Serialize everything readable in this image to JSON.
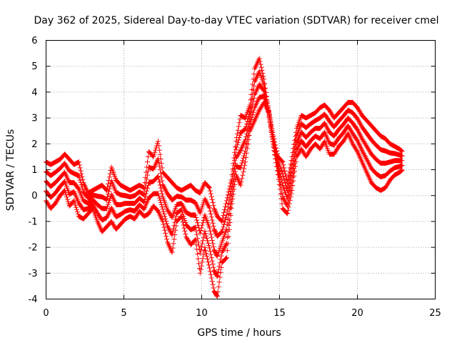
{
  "chart_data": {
    "type": "scatter",
    "title": "Day 362 of 2025, Sidereal Day-to-day VTEC variation (SDTVAR) for receiver cmel",
    "xlabel": "GPS time / hours",
    "ylabel": "SDTVAR / TECUs",
    "xlim": [
      0,
      25
    ],
    "ylim": [
      -4,
      6
    ],
    "xticks": [
      0,
      5,
      10,
      15,
      20,
      25
    ],
    "yticks": [
      -4,
      -3,
      -2,
      -1,
      0,
      1,
      2,
      3,
      4,
      5,
      6
    ],
    "grid": true,
    "marker": "+",
    "color": "#ff0000",
    "series": [
      {
        "name": "cmel",
        "x": [
          0.0,
          0.3,
          0.6,
          0.9,
          1.2,
          1.5,
          1.8,
          2.1,
          2.4,
          2.7,
          3.0,
          3.3,
          3.6,
          3.9,
          4.2,
          4.5,
          4.8,
          5.1,
          5.4,
          5.7,
          6.0,
          6.3,
          6.6,
          6.9,
          7.2,
          7.5,
          7.8,
          8.1,
          8.4,
          8.7,
          9.0,
          9.3,
          9.6,
          9.9,
          10.2,
          10.5,
          10.8,
          11.0,
          11.3,
          11.6,
          11.9,
          12.2,
          12.5,
          12.8,
          13.1,
          13.4,
          13.7,
          14.0,
          14.3,
          14.6,
          14.9,
          15.2,
          15.5,
          15.8,
          16.1,
          16.4,
          16.7,
          17.0,
          17.3,
          17.6,
          17.9,
          18.2,
          18.5,
          18.8,
          19.1,
          19.4,
          19.7,
          20.0,
          20.3,
          20.6,
          20.9,
          21.2,
          21.5,
          21.8,
          22.1,
          22.4,
          22.7,
          22.9
        ],
        "upper": [
          1.3,
          1.2,
          1.3,
          1.4,
          1.6,
          1.4,
          1.2,
          1.3,
          0.5,
          0.1,
          0.2,
          0.3,
          0.4,
          0.2,
          1.1,
          0.6,
          0.4,
          0.3,
          0.2,
          0.3,
          0.4,
          0.3,
          1.7,
          1.5,
          2.1,
          0.9,
          0.7,
          0.5,
          0.3,
          0.2,
          0.3,
          0.4,
          0.2,
          0.1,
          0.5,
          0.3,
          -0.5,
          -0.8,
          -1.0,
          -0.2,
          0.6,
          2.1,
          3.1,
          3.0,
          3.5,
          4.9,
          5.3,
          4.5,
          3.3,
          2.3,
          1.5,
          1.3,
          0.5,
          1.5,
          2.6,
          3.1,
          3.0,
          3.1,
          3.2,
          3.4,
          3.5,
          3.3,
          3.0,
          3.2,
          3.4,
          3.6,
          3.6,
          3.4,
          3.1,
          2.9,
          2.7,
          2.5,
          2.3,
          2.2,
          2.0,
          1.9,
          1.8,
          1.7
        ],
        "lower": [
          -0.2,
          -0.5,
          -0.3,
          0.0,
          0.2,
          -0.4,
          -0.2,
          -0.8,
          -0.9,
          -0.7,
          -0.5,
          -1.0,
          -1.4,
          -1.2,
          -1.0,
          -1.3,
          -1.1,
          -0.9,
          -0.8,
          -0.9,
          -0.6,
          -0.8,
          -0.7,
          -0.4,
          -0.6,
          -1.0,
          -1.8,
          -2.2,
          -1.0,
          -0.8,
          -1.6,
          -1.9,
          -1.7,
          -3.0,
          -2.0,
          -2.8,
          -3.7,
          -3.9,
          -2.6,
          -2.4,
          -0.5,
          0.8,
          0.4,
          1.3,
          2.5,
          2.9,
          3.3,
          3.6,
          3.2,
          1.9,
          0.8,
          -0.5,
          -0.7,
          0.2,
          1.5,
          1.8,
          1.5,
          1.8,
          2.0,
          1.8,
          2.1,
          1.6,
          1.6,
          1.9,
          2.1,
          2.4,
          2.0,
          1.7,
          1.3,
          0.9,
          0.5,
          0.3,
          0.2,
          0.3,
          0.6,
          0.8,
          0.9,
          1.0
        ]
      }
    ]
  }
}
